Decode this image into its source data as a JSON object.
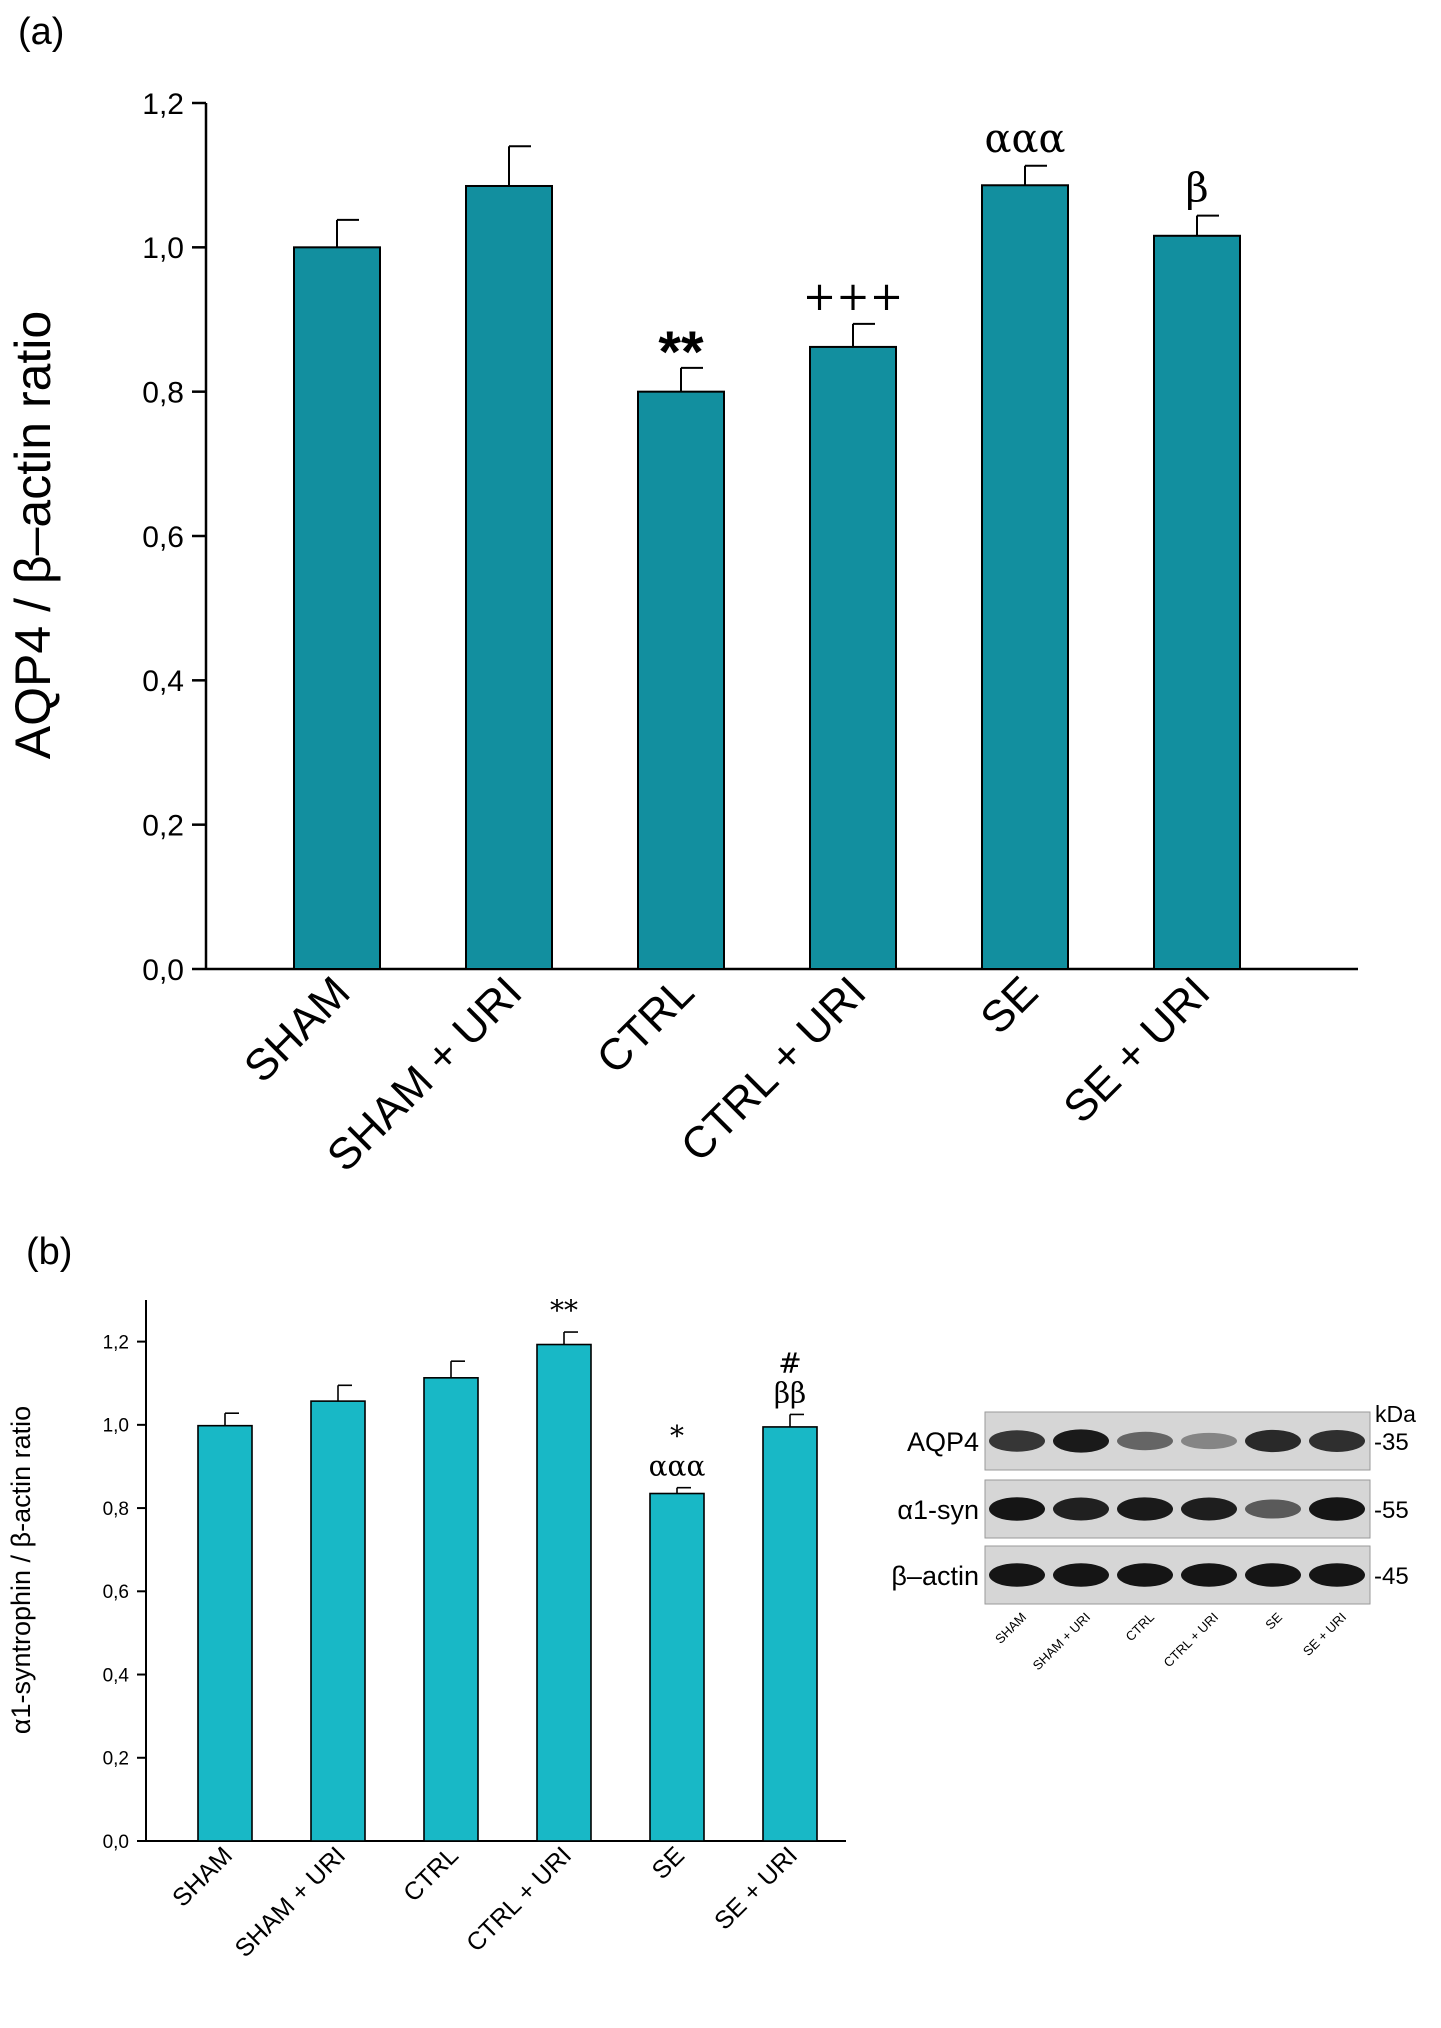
{
  "chart_data": [
    {
      "panel": "(a)",
      "type": "bar",
      "categories": [
        "SHAM",
        "SHAM + URI",
        "CTRL",
        "CTRL + URI",
        "SE",
        "SE + URI"
      ],
      "values": [
        1.0,
        1.085,
        0.8,
        0.862,
        1.086,
        1.016
      ],
      "errors": [
        0.038,
        0.055,
        0.033,
        0.032,
        0.027,
        0.028
      ],
      "annotations": [
        "",
        "",
        "**",
        "+++",
        "ααα",
        "β"
      ],
      "ylabel": "AQP4 / β–actin ratio",
      "ylim": [
        0,
        1.2
      ],
      "yticks": [
        "0,0",
        "0,2",
        "0,4",
        "0,6",
        "0,8",
        "1,0",
        "1,2"
      ],
      "color": "#128f9f"
    },
    {
      "panel": "(b)",
      "type": "bar",
      "categories": [
        "SHAM",
        "SHAM + URI",
        "CTRL",
        "CTRL + URI",
        "SE",
        "SE + URI"
      ],
      "values": [
        0.998,
        1.057,
        1.113,
        1.193,
        0.835,
        0.995
      ],
      "errors": [
        0.03,
        0.038,
        0.04,
        0.03,
        0.014,
        0.03
      ],
      "annotations": [
        [],
        [],
        [],
        [
          "**"
        ],
        [
          "*",
          "ααα"
        ],
        [
          "#",
          "ββ"
        ]
      ],
      "ylabel": "α1-syntrophin / β-actin ratio",
      "ylim": [
        0,
        1.3
      ],
      "yticks": [
        "0,0",
        "0,2",
        "0,4",
        "0,6",
        "0,8",
        "1,0",
        "1,2"
      ],
      "color": "#18b8c6"
    }
  ],
  "blot": {
    "unit_label": "kDa",
    "rows": [
      {
        "label": "AQP4",
        "kda": "-35",
        "intensity": [
          0.82,
          0.95,
          0.6,
          0.45,
          0.88,
          0.85
        ]
      },
      {
        "label": "α1-syn",
        "kda": "-55",
        "intensity": [
          0.97,
          0.92,
          0.95,
          0.93,
          0.65,
          0.97
        ]
      },
      {
        "label": "β–actin",
        "kda": "-45",
        "intensity": [
          0.97,
          0.97,
          0.97,
          0.97,
          0.97,
          0.97
        ]
      }
    ],
    "lanes": [
      "SHAM",
      "SHAM + URI",
      "CTRL",
      "CTRL + URI",
      "SE",
      "SE + URI"
    ]
  }
}
